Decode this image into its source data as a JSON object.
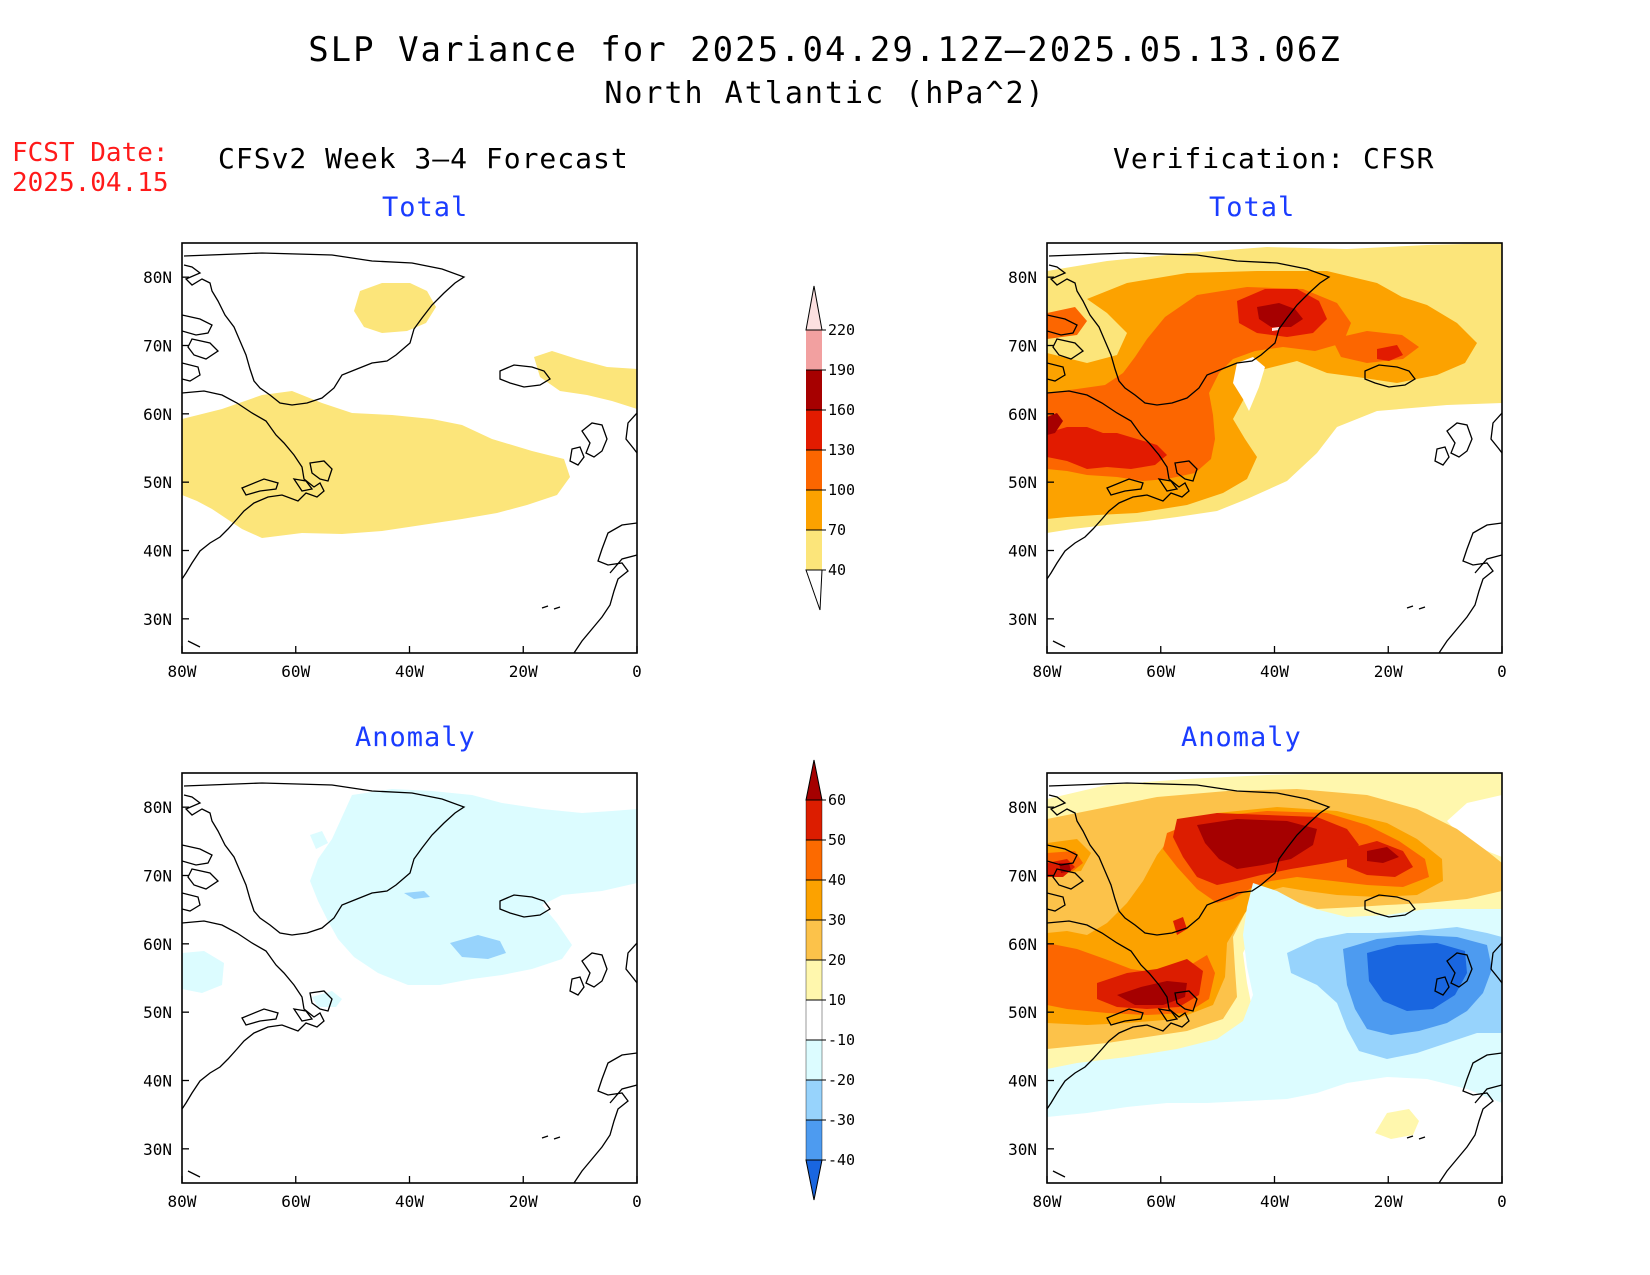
{
  "title": {
    "line1": "SLP Variance for 2025.04.29.12Z–2025.05.13.06Z",
    "line2": "North Atlantic (hPa^2)"
  },
  "fcst_date": {
    "label": "FCST Date:",
    "value": "2025.04.15"
  },
  "columns": {
    "left": "CFSv2 Week 3–4 Forecast",
    "right": "Verification: CFSR"
  },
  "panel_titles": {
    "total": "Total",
    "anomaly": "Anomaly"
  },
  "axes": {
    "lon_labels": [
      "80W",
      "60W",
      "40W",
      "20W",
      "0"
    ],
    "lat_labels": [
      "80N",
      "70N",
      "60N",
      "50N",
      "40N",
      "30N"
    ],
    "lon_range": [
      -80,
      0
    ],
    "lat_range": [
      25,
      85
    ]
  },
  "colorbars": {
    "total": {
      "levels": [
        "40",
        "70",
        "100",
        "130",
        "160",
        "190",
        "220"
      ],
      "colors": [
        "#fce57a",
        "#fca200",
        "#fc6600",
        "#e21b00",
        "#a60000",
        "#f2a0a0",
        "#fce0e0"
      ]
    },
    "anomaly": {
      "levels": [
        "60",
        "50",
        "40",
        "30",
        "20",
        "10",
        "-10",
        "-20",
        "-30",
        "-40"
      ],
      "colors": [
        "#a50000",
        "#dc1d00",
        "#fc6a00",
        "#fca200",
        "#fcc24a",
        "#fff7ad",
        "#ffffff",
        "#dcfcff",
        "#97d3fc",
        "#4d9bf0",
        "#1966e0"
      ]
    }
  },
  "colors": {
    "title_blue": "#1a3cff",
    "fcst_red": "#ff1a1a"
  }
}
